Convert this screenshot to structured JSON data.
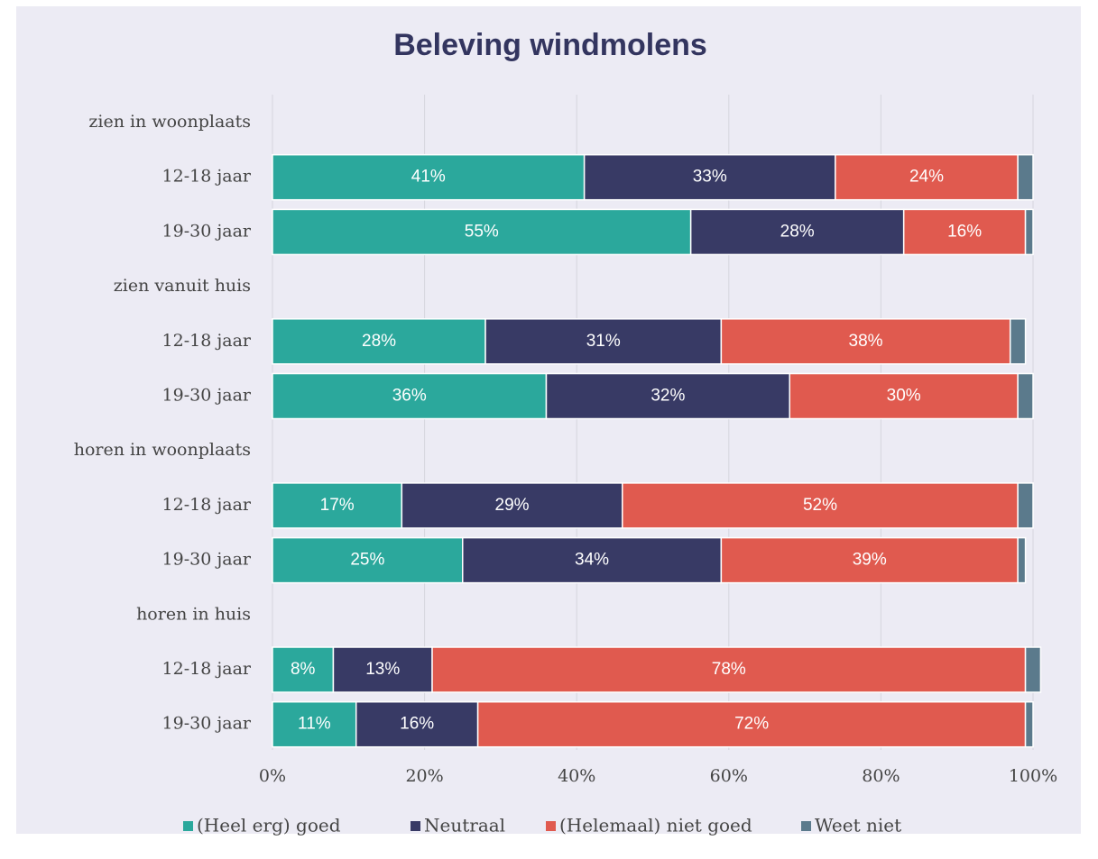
{
  "chart_data": {
    "type": "stacked_barh",
    "title": "Beleving windmolens",
    "categories": [
      "zien in woonplaats",
      "12-18 jaar",
      "19-30 jaar",
      "zien vanuit huis",
      "12-18 jaar",
      "19-30 jaar",
      "horen in woonplaats",
      "12-18 jaar",
      "19-30 jaar",
      "horen in huis",
      "12-18 jaar",
      "19-30 jaar"
    ],
    "series": [
      {
        "name": "(Heel erg) goed",
        "color": "#2ba89c",
        "values": [
          null,
          41,
          55,
          null,
          28,
          36,
          null,
          17,
          25,
          null,
          8,
          11
        ],
        "value_labels": [
          null,
          "41%",
          "55%",
          null,
          "28%",
          "36%",
          null,
          "17%",
          "25%",
          null,
          "8%",
          "11%"
        ]
      },
      {
        "name": "Neutraal",
        "color": "#383a65",
        "values": [
          null,
          33,
          28,
          null,
          31,
          32,
          null,
          29,
          34,
          null,
          13,
          16
        ],
        "value_labels": [
          null,
          "33%",
          "28%",
          null,
          "31%",
          "32%",
          null,
          "29%",
          "34%",
          null,
          "13%",
          "16%"
        ]
      },
      {
        "name": "(Helemaal) niet goed",
        "color": "#e05a4f",
        "values": [
          null,
          24,
          16,
          null,
          38,
          30,
          null,
          52,
          39,
          null,
          78,
          72
        ],
        "value_labels": [
          null,
          "24%",
          "16%",
          null,
          "38%",
          "30%",
          null,
          "52%",
          "39%",
          null,
          "78%",
          "72%"
        ]
      },
      {
        "name": "Weet niet",
        "color": "#5b7a8c",
        "values": [
          null,
          2,
          1,
          null,
          2,
          2,
          null,
          2,
          1,
          null,
          2,
          1
        ]
      }
    ],
    "xlim": [
      0,
      100
    ],
    "xticks": [
      {
        "value": 0,
        "label": "0%"
      },
      {
        "value": 20,
        "label": "20%"
      },
      {
        "value": 40,
        "label": "40%"
      },
      {
        "value": 60,
        "label": "60%"
      },
      {
        "value": 80,
        "label": "80%"
      },
      {
        "value": 100,
        "label": "100%"
      }
    ],
    "grid": true
  }
}
